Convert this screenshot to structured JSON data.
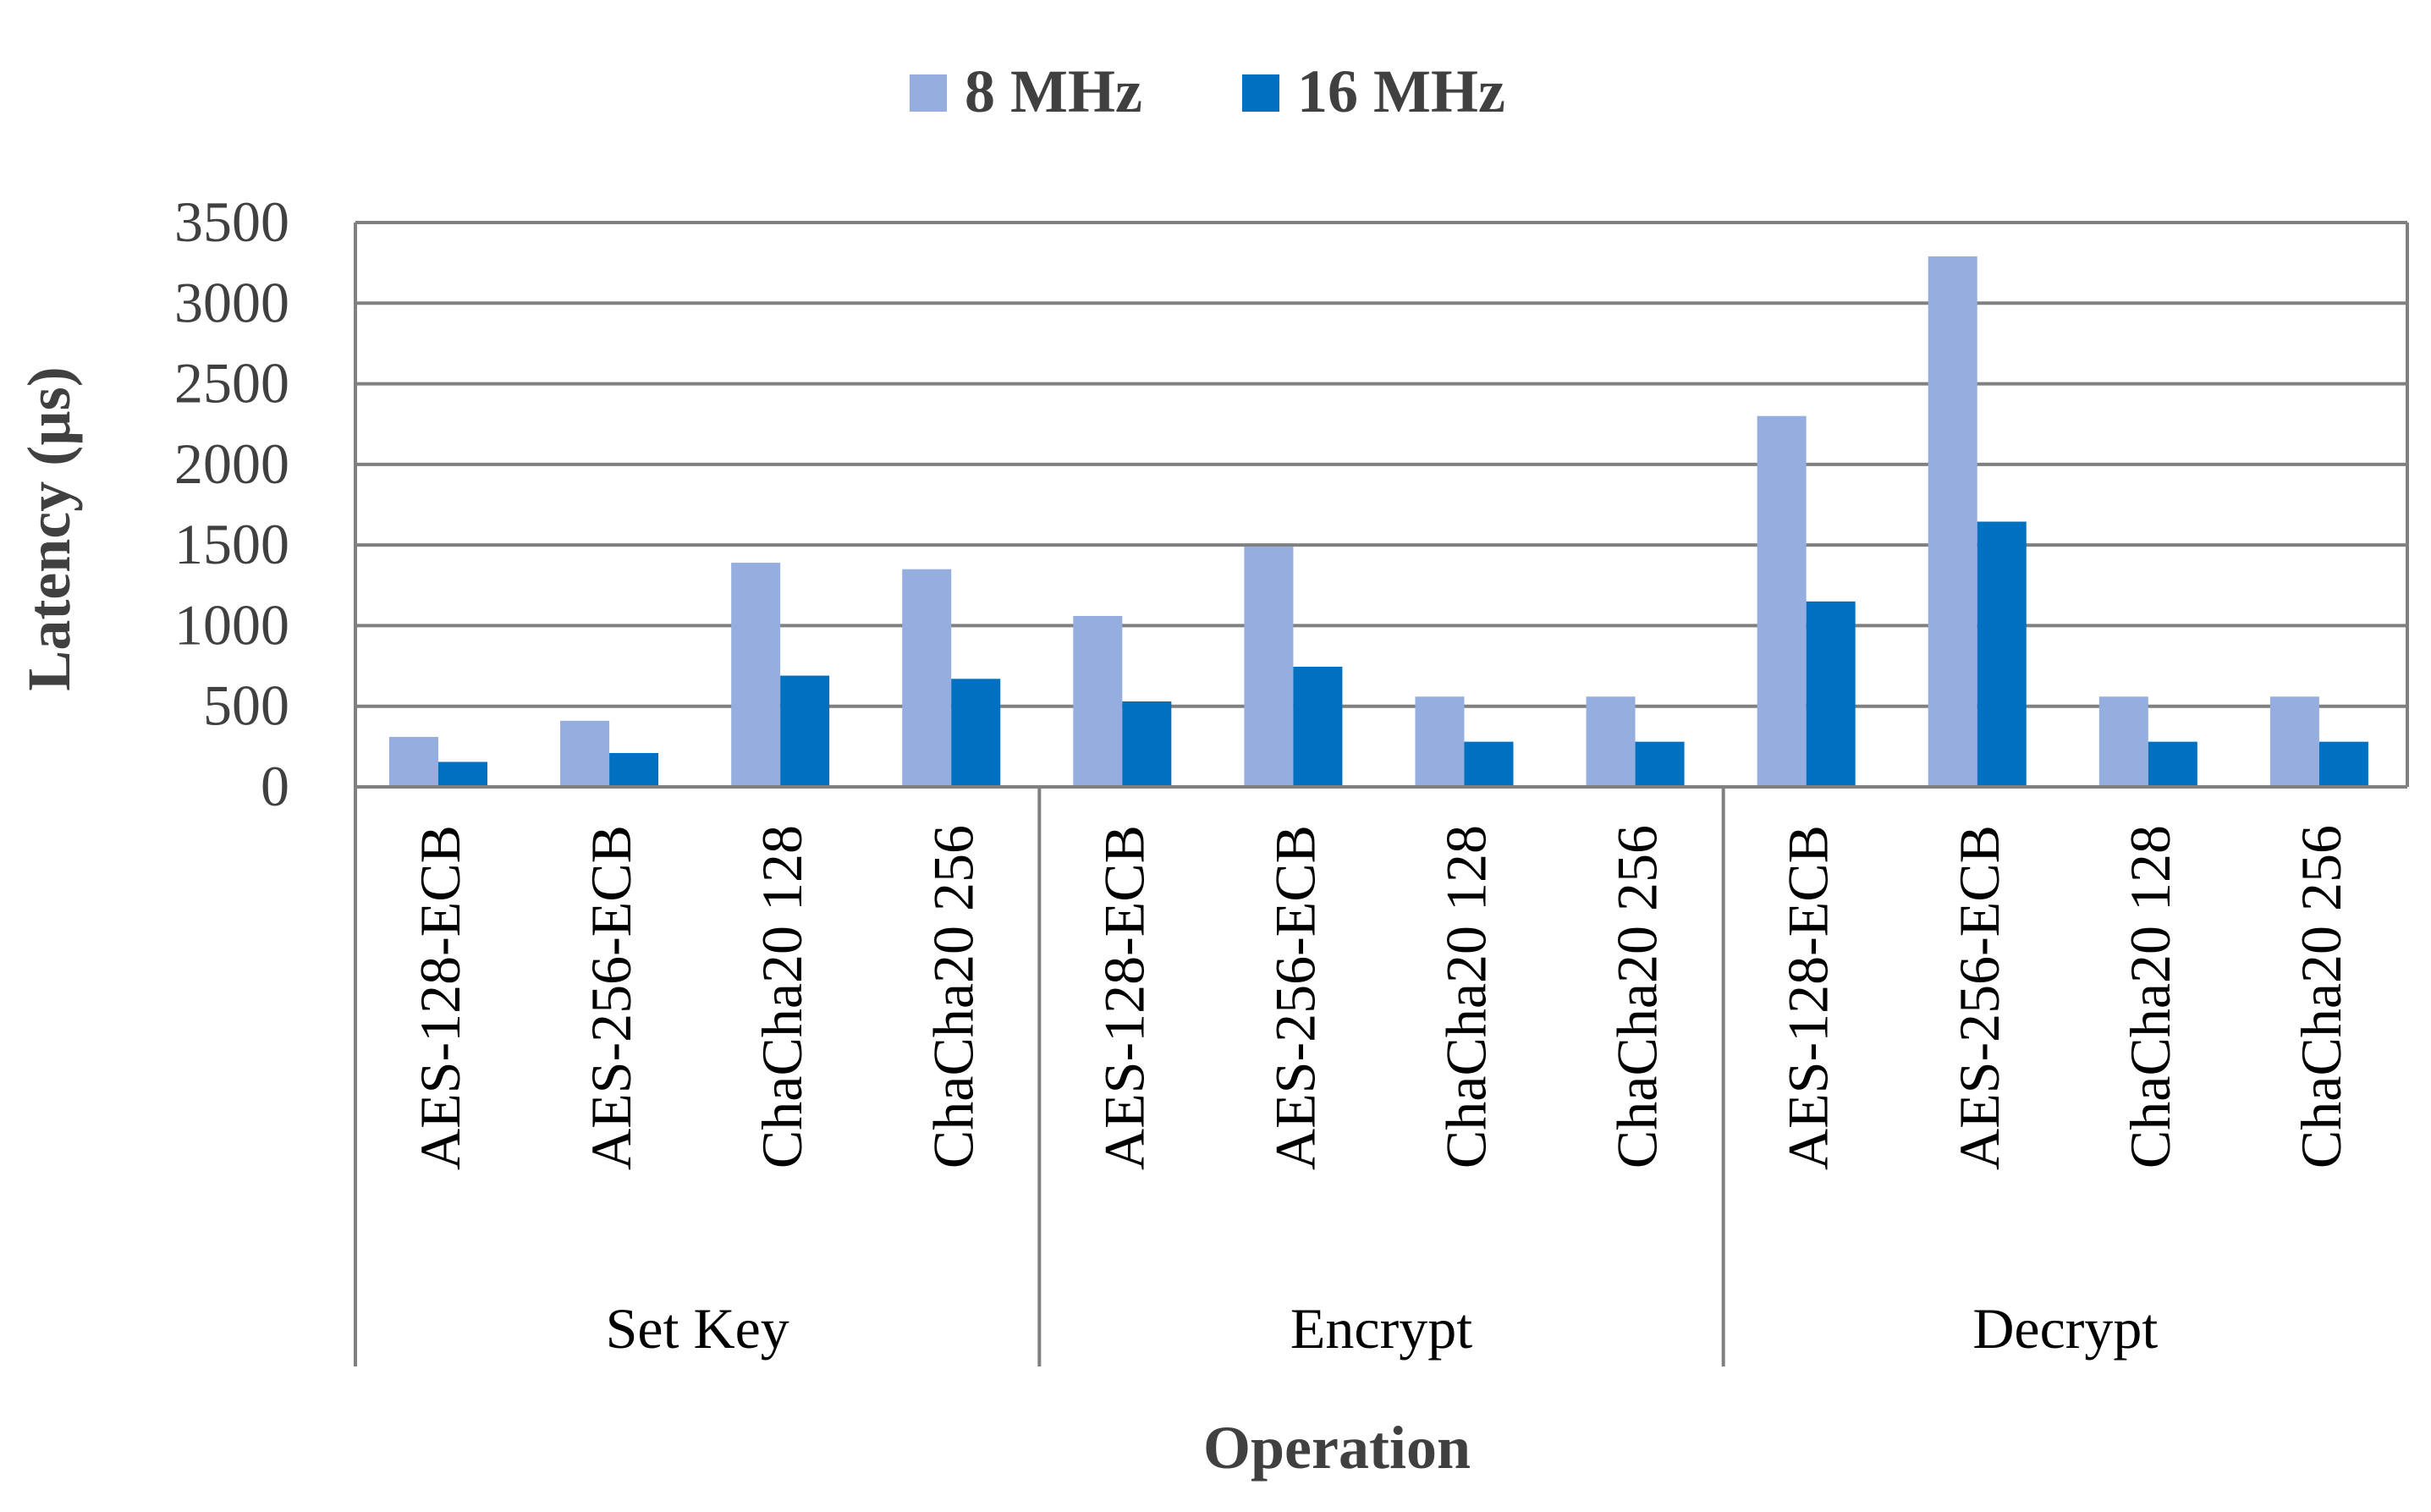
{
  "chart_data": {
    "type": "bar",
    "title": "",
    "xlabel": "Operation",
    "ylabel": "Latency (µs)",
    "ylim": [
      0,
      3500
    ],
    "yticks": [
      0,
      500,
      1000,
      1500,
      2000,
      2500,
      3000,
      3500
    ],
    "grid": true,
    "legend_position": "top-center",
    "groups": [
      {
        "label": "Set Key",
        "categories": [
          "AES-128-ECB",
          "AES-256-ECB",
          "ChaCha20 128",
          "ChaCha20 256"
        ]
      },
      {
        "label": "Encrypt",
        "categories": [
          "AES-128-ECB",
          "AES-256-ECB",
          "ChaCha20 128",
          "ChaCha20 256"
        ]
      },
      {
        "label": "Decrypt",
        "categories": [
          "AES-128-ECB",
          "AES-256-ECB",
          "ChaCha20 128",
          "ChaCha20 256"
        ]
      }
    ],
    "series": [
      {
        "name": "8 MHz",
        "color": "#95AEDF",
        "values": [
          310,
          410,
          1390,
          1350,
          1060,
          1490,
          560,
          560,
          2300,
          3290,
          560,
          560
        ]
      },
      {
        "name": "16 MHz",
        "color": "#0070C0",
        "values": [
          155,
          210,
          690,
          670,
          530,
          745,
          280,
          280,
          1150,
          1645,
          280,
          280
        ]
      }
    ]
  }
}
